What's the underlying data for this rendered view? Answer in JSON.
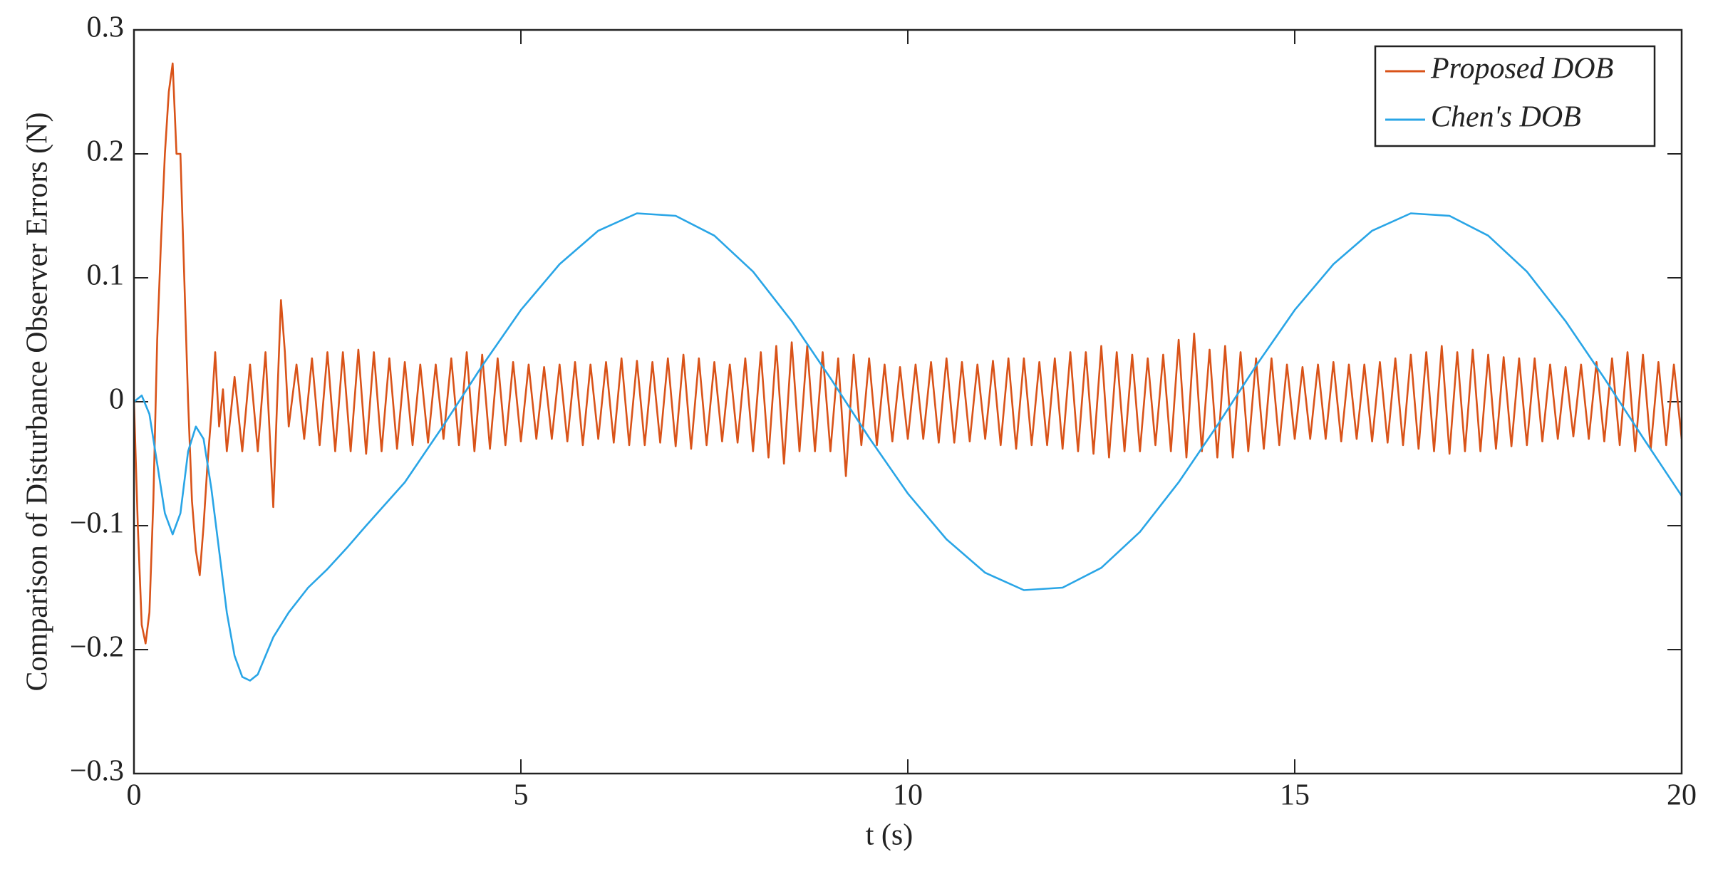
{
  "chart_data": {
    "type": "line",
    "xlabel": "t (s)",
    "ylabel": "Comparison of Disturbance Observer Errors (N)",
    "xlim": [
      0,
      20
    ],
    "ylim": [
      -0.3,
      0.3
    ],
    "xticks": [
      0,
      5,
      10,
      15,
      20
    ],
    "yticks": [
      {
        "value": -0.3,
        "label": "−0.3"
      },
      {
        "value": -0.2,
        "label": "−0.2"
      },
      {
        "value": -0.1,
        "label": "−0.1"
      },
      0,
      0.1,
      0.2,
      0.3
    ],
    "grid": false,
    "legend": "upper right",
    "series": [
      {
        "name": "Proposed DOB",
        "color": "#d95319",
        "x": [
          0,
          0.05,
          0.1,
          0.15,
          0.2,
          0.25,
          0.3,
          0.35,
          0.4,
          0.45,
          0.5,
          0.55,
          0.6,
          0.65,
          0.7,
          0.75,
          0.8,
          0.85,
          0.9,
          0.95,
          1.0,
          1.05,
          1.1,
          1.15,
          1.2,
          1.3,
          1.4,
          1.5,
          1.6,
          1.7,
          1.75,
          1.8,
          1.85,
          1.9,
          1.95,
          2.0,
          2.1,
          2.2,
          2.3,
          2.4,
          2.5,
          2.6,
          2.7,
          2.8,
          2.9,
          3.0,
          3.1,
          3.2,
          3.3,
          3.4,
          3.5,
          3.6,
          3.7,
          3.8,
          3.9,
          4.0,
          4.1,
          4.2,
          4.3,
          4.4,
          4.5,
          4.6,
          4.7,
          4.8,
          4.9,
          5.0,
          5.1,
          5.2,
          5.3,
          5.4,
          5.5,
          5.6,
          5.7,
          5.8,
          5.9,
          6.0,
          6.1,
          6.2,
          6.3,
          6.4,
          6.5,
          6.6,
          6.7,
          6.8,
          6.9,
          7.0,
          7.1,
          7.2,
          7.3,
          7.4,
          7.5,
          7.6,
          7.7,
          7.8,
          7.9,
          8.0,
          8.1,
          8.2,
          8.3,
          8.4,
          8.5,
          8.6,
          8.7,
          8.8,
          8.9,
          9.0,
          9.1,
          9.2,
          9.3,
          9.4,
          9.5,
          9.6,
          9.7,
          9.8,
          9.9,
          10.0,
          10.1,
          10.2,
          10.3,
          10.4,
          10.5,
          10.6,
          10.7,
          10.8,
          10.9,
          11.0,
          11.1,
          11.2,
          11.3,
          11.4,
          11.5,
          11.6,
          11.7,
          11.8,
          11.9,
          12.0,
          12.1,
          12.2,
          12.3,
          12.4,
          12.5,
          12.6,
          12.7,
          12.8,
          12.9,
          13.0,
          13.1,
          13.2,
          13.3,
          13.4,
          13.5,
          13.6,
          13.7,
          13.8,
          13.9,
          14.0,
          14.1,
          14.2,
          14.3,
          14.4,
          14.5,
          14.6,
          14.7,
          14.8,
          14.9,
          15.0,
          15.1,
          15.2,
          15.3,
          15.4,
          15.5,
          15.6,
          15.7,
          15.8,
          15.9,
          16.0,
          16.1,
          16.2,
          16.3,
          16.4,
          16.5,
          16.6,
          16.7,
          16.8,
          16.9,
          17.0,
          17.1,
          17.2,
          17.3,
          17.4,
          17.5,
          17.6,
          17.7,
          17.8,
          17.9,
          18.0,
          18.1,
          18.2,
          18.3,
          18.4,
          18.5,
          18.6,
          18.7,
          18.8,
          18.9,
          19.0,
          19.1,
          19.2,
          19.3,
          19.4,
          19.5,
          19.6,
          19.7,
          19.8,
          19.9,
          20.0
        ],
        "values": [
          0,
          -0.1,
          -0.18,
          -0.195,
          -0.17,
          -0.08,
          0.05,
          0.13,
          0.2,
          0.25,
          0.273,
          0.2,
          0.2,
          0.1,
          0,
          -0.08,
          -0.12,
          -0.14,
          -0.1,
          -0.05,
          -0.01,
          0.04,
          -0.02,
          0.01,
          -0.04,
          0.02,
          -0.04,
          0.03,
          -0.04,
          0.04,
          -0.02,
          -0.085,
          0.0,
          0.082,
          0.04,
          -0.02,
          0.03,
          -0.03,
          0.035,
          -0.035,
          0.04,
          -0.04,
          0.04,
          -0.04,
          0.042,
          -0.042,
          0.04,
          -0.04,
          0.035,
          -0.038,
          0.032,
          -0.035,
          0.03,
          -0.033,
          0.03,
          -0.03,
          0.035,
          -0.035,
          0.04,
          -0.04,
          0.038,
          -0.038,
          0.035,
          -0.035,
          0.032,
          -0.032,
          0.03,
          -0.03,
          0.028,
          -0.03,
          0.03,
          -0.032,
          0.032,
          -0.035,
          0.03,
          -0.03,
          0.032,
          -0.033,
          0.035,
          -0.035,
          0.033,
          -0.035,
          0.032,
          -0.033,
          0.035,
          -0.036,
          0.038,
          -0.038,
          0.035,
          -0.035,
          0.032,
          -0.032,
          0.03,
          -0.033,
          0.035,
          -0.04,
          0.04,
          -0.045,
          0.045,
          -0.05,
          0.048,
          -0.04,
          0.045,
          -0.04,
          0.04,
          -0.04,
          0.035,
          -0.06,
          0.038,
          -0.035,
          0.035,
          -0.035,
          0.03,
          -0.032,
          0.028,
          -0.03,
          0.03,
          -0.03,
          0.032,
          -0.033,
          0.035,
          -0.033,
          0.032,
          -0.032,
          0.03,
          -0.03,
          0.033,
          -0.035,
          0.035,
          -0.038,
          0.035,
          -0.035,
          0.032,
          -0.035,
          0.035,
          -0.038,
          0.04,
          -0.04,
          0.04,
          -0.042,
          0.045,
          -0.045,
          0.04,
          -0.04,
          0.038,
          -0.04,
          0.035,
          -0.035,
          0.038,
          -0.04,
          0.05,
          -0.045,
          0.055,
          -0.04,
          0.042,
          -0.045,
          0.045,
          -0.045,
          0.04,
          -0.04,
          0.035,
          -0.038,
          0.035,
          -0.035,
          0.03,
          -0.03,
          0.028,
          -0.03,
          0.03,
          -0.03,
          0.032,
          -0.032,
          0.03,
          -0.03,
          0.03,
          -0.032,
          0.032,
          -0.033,
          0.035,
          -0.035,
          0.038,
          -0.038,
          0.04,
          -0.04,
          0.045,
          -0.042,
          0.04,
          -0.04,
          0.042,
          -0.04,
          0.038,
          -0.038,
          0.036,
          -0.036,
          0.035,
          -0.035,
          0.035,
          -0.032,
          0.03,
          -0.03,
          0.028,
          -0.028,
          0.03,
          -0.03,
          0.032,
          -0.032,
          0.035,
          -0.035,
          0.04,
          -0.04,
          0.038,
          -0.038,
          0.032,
          -0.035,
          0.03,
          -0.03
        ]
      },
      {
        "name": "Chen's DOB",
        "color": "#29a5e6",
        "x": [
          0,
          0.1,
          0.2,
          0.3,
          0.4,
          0.5,
          0.6,
          0.7,
          0.8,
          0.9,
          1.0,
          1.1,
          1.2,
          1.3,
          1.4,
          1.5,
          1.6,
          1.7,
          1.8,
          2.0,
          2.25,
          2.5,
          2.75,
          3.0,
          3.5,
          4.0,
          4.5,
          5.0,
          5.5,
          6.0,
          6.5,
          7.0,
          7.5,
          8.0,
          8.5,
          9.0,
          9.5,
          10.0,
          10.5,
          11.0,
          11.5,
          12.0,
          12.5,
          13.0,
          13.5,
          14.0,
          14.5,
          15.0,
          15.5,
          16.0,
          16.5,
          17.0,
          17.5,
          18.0,
          18.5,
          19.0,
          19.5,
          20.0
        ],
        "values": [
          0,
          0.005,
          -0.01,
          -0.05,
          -0.09,
          -0.107,
          -0.09,
          -0.04,
          -0.02,
          -0.03,
          -0.07,
          -0.12,
          -0.17,
          -0.205,
          -0.222,
          -0.225,
          -0.22,
          -0.205,
          -0.19,
          -0.17,
          -0.15,
          -0.135,
          -0.118,
          -0.1,
          -0.065,
          -0.019,
          0.029,
          0.074,
          0.111,
          0.138,
          0.152,
          0.15,
          0.134,
          0.105,
          0.065,
          0.019,
          -0.029,
          -0.074,
          -0.111,
          -0.138,
          -0.152,
          -0.15,
          -0.134,
          -0.105,
          -0.065,
          -0.019,
          0.029,
          0.074,
          0.111,
          0.138,
          0.152,
          0.15,
          0.134,
          0.105,
          0.065,
          0.019,
          -0.029,
          -0.076
        ]
      }
    ]
  }
}
